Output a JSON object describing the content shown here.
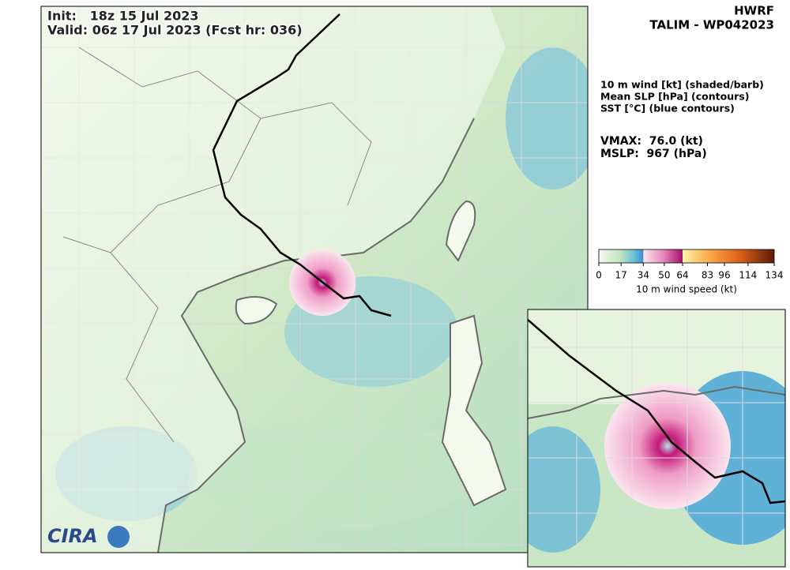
{
  "header": {
    "model": "HWRF",
    "storm": "TALIM - WP042023"
  },
  "map": {
    "init": "Init:   18z 15 Jul 2023",
    "valid": "Valid: 06z 17 Jul 2023 (Fcst hr: 036)",
    "logo": "CIRA"
  },
  "legend": {
    "fields": [
      "10 m wind [kt] (shaded/barb)",
      "Mean SLP [hPa] (contours)",
      "SST [°C] (blue contours)"
    ],
    "vmax": "VMAX:  76.0 (kt)",
    "mslp": "MSLP:  967 (hPa)"
  },
  "colorbar": {
    "label": "10 m wind speed (kt)",
    "ticks": [
      0,
      17,
      34,
      50,
      64,
      83,
      96,
      114,
      134
    ]
  }
}
